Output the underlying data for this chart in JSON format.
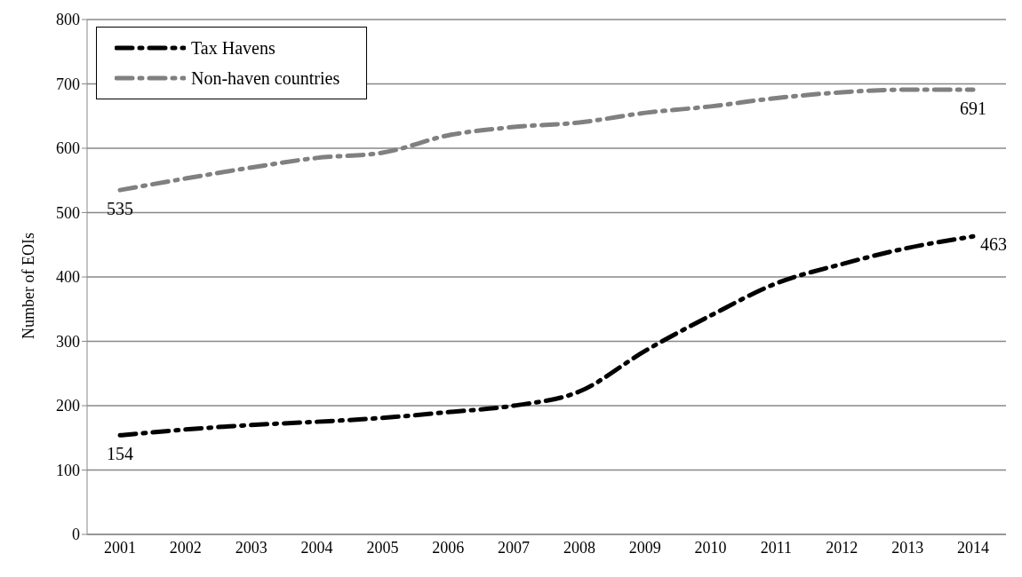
{
  "chart_data": {
    "type": "line",
    "ylabel": "Number of EOIs",
    "categories": [
      "2001",
      "2002",
      "2003",
      "2004",
      "2005",
      "2006",
      "2007",
      "2008",
      "2009",
      "2010",
      "2011",
      "2012",
      "2013",
      "2014"
    ],
    "series": [
      {
        "name": "Tax Havens",
        "color": "#000000",
        "values": [
          154,
          163,
          170,
          175,
          181,
          190,
          200,
          222,
          285,
          340,
          390,
          420,
          445,
          463
        ],
        "value_labels": [
          "154",
          null,
          null,
          null,
          null,
          null,
          null,
          null,
          null,
          null,
          null,
          null,
          null,
          "463"
        ]
      },
      {
        "name": "Non-haven countries",
        "color": "#808080",
        "values": [
          535,
          553,
          570,
          585,
          593,
          620,
          633,
          640,
          655,
          665,
          678,
          687,
          691,
          691
        ],
        "value_labels": [
          "535",
          null,
          null,
          null,
          null,
          null,
          null,
          null,
          null,
          null,
          null,
          null,
          null,
          "691"
        ]
      }
    ],
    "ylim": [
      0,
      800
    ],
    "yticks": [
      0,
      100,
      200,
      300,
      400,
      500,
      600,
      700,
      800
    ],
    "grid": "y",
    "legend": "top left",
    "marker": "none",
    "line_style": "dashed"
  }
}
